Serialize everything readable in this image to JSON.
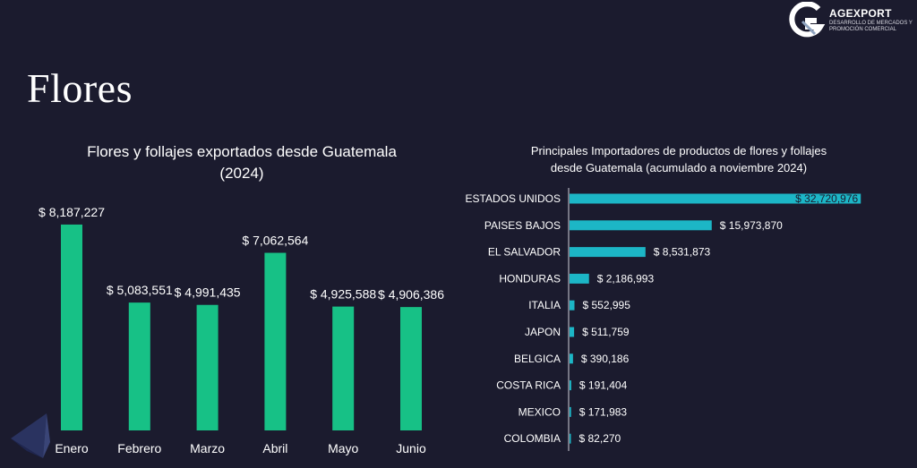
{
  "page": {
    "title": "Flores"
  },
  "logo": {
    "name": "AGEXPORT",
    "tagline": "DESARROLLO DE MERCADOS Y PROMOCIÓN COMERCIAL"
  },
  "colors": {
    "background": "#1b1b2e",
    "bar_green": "#17c186",
    "bar_teal": "#1cb6c6",
    "axis": "#cfcfd8",
    "text": "#ffffff"
  },
  "chart_data": [
    {
      "type": "bar",
      "title_lines": [
        "Flores y follajes exportados desde Guatemala",
        "(2024)"
      ],
      "categories": [
        "Enero",
        "Febrero",
        "Marzo",
        "Abril",
        "Mayo",
        "Junio"
      ],
      "values": [
        8187227,
        5083551,
        4991435,
        7062564,
        4925588,
        4906386
      ],
      "value_labels": [
        "$ 8,187,227",
        "$ 5,083,551",
        "$ 4,991,435",
        "$ 7,062,564",
        "$ 4,925,588",
        "$ 4,906,386"
      ],
      "ylim": [
        0,
        10000000
      ],
      "grid": false,
      "color": "#17c186"
    },
    {
      "type": "bar",
      "orientation": "horizontal",
      "title_lines": [
        "Principales Importadores de productos de flores y follajes",
        "desde Guatemala (acumulado a noviembre 2024)"
      ],
      "categories": [
        "ESTADOS UNIDOS",
        "PAISES BAJOS",
        "EL SALVADOR",
        "HONDURAS",
        "ITALIA",
        "JAPON",
        "BELGICA",
        "COSTA RICA",
        "MEXICO",
        "COLOMBIA"
      ],
      "values": [
        32720976,
        15973870,
        8531873,
        2186993,
        552995,
        511759,
        390186,
        191404,
        171983,
        82270
      ],
      "value_labels": [
        "$ 32,720,976",
        "$ 15,973,870",
        "$ 8,531,873",
        "$ 2,186,993",
        "$ 552,995",
        "$ 511,759",
        "$ 390,186",
        "$ 191,404",
        "$ 171,983",
        "$ 82,270"
      ],
      "xlim": [
        0,
        33000000
      ],
      "grid": false,
      "color": "#1cb6c6"
    }
  ]
}
